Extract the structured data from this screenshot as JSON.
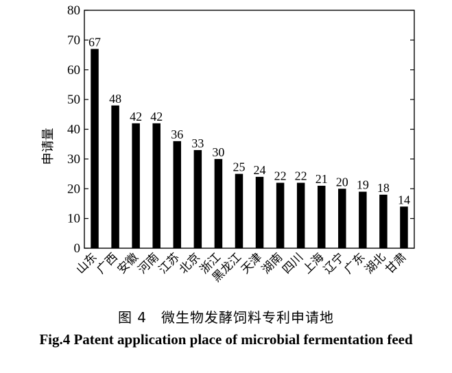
{
  "chart_data": {
    "type": "bar",
    "ylabel": "申请量",
    "ylim": [
      0,
      80
    ],
    "yticks": [
      0,
      10,
      20,
      30,
      40,
      50,
      60,
      70,
      80
    ],
    "categories": [
      "山东",
      "广西",
      "安徽",
      "河南",
      "江苏",
      "北京",
      "浙江",
      "黑龙江",
      "天津",
      "湖南",
      "四川",
      "上海",
      "辽宁",
      "广东",
      "湖北",
      "甘肃"
    ],
    "values": [
      67,
      48,
      42,
      42,
      36,
      33,
      30,
      25,
      24,
      22,
      22,
      21,
      20,
      19,
      18,
      14
    ],
    "bar_color": "#000000",
    "grid": false
  },
  "caption": {
    "cn": "图 4　微生物发酵饲料专利申请地",
    "en": "Fig.4 Patent application place of microbial fermentation feed"
  }
}
